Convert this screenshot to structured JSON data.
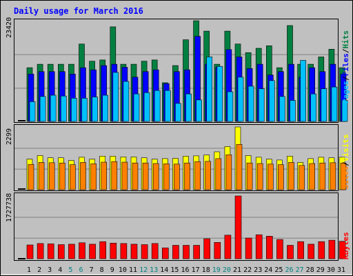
{
  "title": "Daily usage for March 2016",
  "colors": {
    "hits": "#008040",
    "files": "#0000ff",
    "pages": "#00c0ff",
    "visits": "#ffff00",
    "sites": "#ff8000",
    "kbytes": "#ff0000",
    "weekend_label": "#008080",
    "title": "#0000ff"
  },
  "side_labels": {
    "pages": "Pages",
    "files": "Files",
    "hits": "Hits",
    "sep": "/",
    "visits": "Visits",
    "sites": "Sites",
    "kbytes": "KBytes"
  },
  "chart_data": [
    {
      "type": "bar",
      "panel": "hits-files-pages",
      "categories": [
        "1",
        "2",
        "3",
        "4",
        "5",
        "6",
        "7",
        "8",
        "9",
        "10",
        "11",
        "12",
        "13",
        "14",
        "15",
        "16",
        "17",
        "18",
        "19",
        "20",
        "21",
        "22",
        "23",
        "24",
        "25",
        "26",
        "27",
        "28",
        "29",
        "30",
        "31"
      ],
      "ymax_label": "23420",
      "ylim": [
        0,
        23420
      ],
      "series": [
        {
          "name": "Hits",
          "values": [
            12500,
            13300,
            13300,
            13300,
            13300,
            18000,
            14000,
            14300,
            22000,
            13300,
            13300,
            14000,
            14300,
            9000,
            13000,
            19000,
            23420,
            21000,
            13300,
            21000,
            18000,
            16000,
            17000,
            17600,
            12500,
            22300,
            13300,
            13300,
            15000,
            16800,
            12500
          ]
        },
        {
          "name": "Files",
          "values": [
            11000,
            11600,
            11600,
            11600,
            11000,
            12500,
            12000,
            13000,
            13300,
            12600,
            10300,
            11600,
            12000,
            8800,
            11600,
            12000,
            19800,
            13300,
            12600,
            16700,
            15000,
            12300,
            13300,
            10800,
            11600,
            13300,
            10300,
            12500,
            11600,
            13300,
            11000
          ]
        },
        {
          "name": "Pages",
          "values": [
            4600,
            5800,
            6100,
            5900,
            5400,
            5400,
            5700,
            6100,
            11400,
            9300,
            6400,
            6700,
            7200,
            7200,
            4200,
            6400,
            5000,
            15000,
            12800,
            6900,
            10300,
            8200,
            7600,
            9500,
            5800,
            4900,
            14200,
            6400,
            7600,
            8000,
            4900
          ]
        }
      ],
      "grid_lines": 2,
      "grid": true
    },
    {
      "type": "bar",
      "panel": "visits-sites",
      "categories": [
        "1",
        "2",
        "3",
        "4",
        "5",
        "6",
        "7",
        "8",
        "9",
        "10",
        "11",
        "12",
        "13",
        "14",
        "15",
        "16",
        "17",
        "18",
        "19",
        "20",
        "21",
        "22",
        "23",
        "24",
        "25",
        "26",
        "27",
        "28",
        "29",
        "30",
        "31"
      ],
      "ymax_label": "2299",
      "ylim": [
        0,
        2299
      ],
      "series": [
        {
          "name": "Visits",
          "values": [
            1120,
            1250,
            1170,
            1170,
            1070,
            1190,
            1120,
            1230,
            1230,
            1200,
            1200,
            1170,
            1120,
            1140,
            1150,
            1230,
            1240,
            1270,
            1390,
            1580,
            2299,
            1250,
            1190,
            1120,
            1090,
            1230,
            1000,
            1140,
            1190,
            1170,
            1190
          ]
        },
        {
          "name": "Sites",
          "values": [
            930,
            1000,
            990,
            980,
            920,
            1000,
            950,
            1010,
            1030,
            1010,
            980,
            980,
            960,
            950,
            940,
            980,
            1030,
            1040,
            1140,
            1280,
            1660,
            980,
            960,
            940,
            920,
            1000,
            890,
            960,
            980,
            990,
            980
          ]
        }
      ],
      "grid_lines": 2,
      "grid": true
    },
    {
      "type": "bar",
      "panel": "kbytes",
      "categories": [
        "1",
        "2",
        "3",
        "4",
        "5",
        "6",
        "7",
        "8",
        "9",
        "10",
        "11",
        "12",
        "13",
        "14",
        "15",
        "16",
        "17",
        "18",
        "19",
        "20",
        "21",
        "22",
        "23",
        "24",
        "25",
        "26",
        "27",
        "28",
        "29",
        "30",
        "31"
      ],
      "ymax_label": "1727738",
      "ylim": [
        0,
        1727738
      ],
      "series": [
        {
          "name": "KBytes",
          "values": [
            380000,
            420000,
            410000,
            390000,
            400000,
            440000,
            400000,
            470000,
            430000,
            420000,
            400000,
            390000,
            420000,
            300000,
            370000,
            370000,
            370000,
            550000,
            450000,
            650000,
            1727738,
            570000,
            660000,
            620000,
            530000,
            370000,
            470000,
            400000,
            470000,
            510000,
            480000
          ]
        }
      ],
      "grid_lines": 2,
      "grid": true
    }
  ],
  "x_labels": [
    "1",
    "2",
    "3",
    "4",
    "5",
    "6",
    "7",
    "8",
    "9",
    "10",
    "11",
    "12",
    "13",
    "14",
    "15",
    "16",
    "17",
    "18",
    "19",
    "20",
    "21",
    "22",
    "23",
    "24",
    "25",
    "26",
    "27",
    "28",
    "29",
    "30",
    "31"
  ],
  "weekend_days": [
    "5",
    "6",
    "12",
    "13",
    "19",
    "20",
    "26",
    "27"
  ]
}
